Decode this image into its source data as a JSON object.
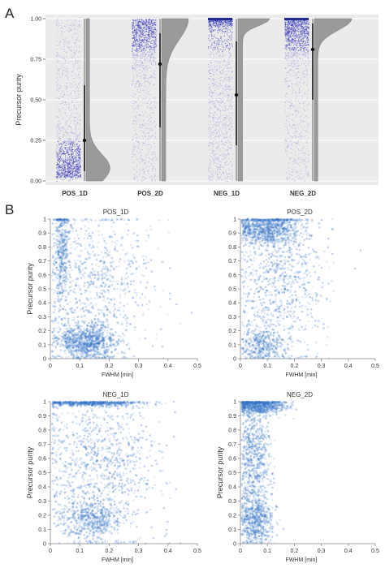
{
  "panels": {
    "a": "A",
    "b": "B"
  },
  "chart_data": [
    {
      "type": "raincloud",
      "panel": "A",
      "ylabel": "Precursor purity",
      "ylim": [
        0,
        1
      ],
      "yticks": [
        "0.00",
        "0.25",
        "0.50",
        "0.75",
        "1.00"
      ],
      "categories": [
        "POS_1D",
        "POS_2D",
        "NEG_1D",
        "NEG_2D"
      ],
      "medians": [
        0.25,
        0.72,
        0.53,
        0.81
      ],
      "iqr": [
        [
          0.06,
          0.59
        ],
        [
          0.33,
          0.91
        ],
        [
          0.22,
          0.86
        ],
        [
          0.5,
          0.97
        ]
      ],
      "grid": true,
      "point_color": "#2b2bb8",
      "violin_color": "#9a9a9a",
      "background": "#ebebeb"
    },
    {
      "type": "scatter",
      "panel": "B",
      "title": "POS_1D",
      "xlabel": "FWHM [min]",
      "ylabel": "Precursor purity",
      "xlim": [
        0,
        0.5
      ],
      "ylim": [
        0,
        1
      ],
      "xticks": [
        "0",
        "0.1",
        "0.2",
        "0.3",
        "0.4",
        "0.5"
      ],
      "yticks": [
        "0",
        "0.1",
        "0.2",
        "0.3",
        "0.4",
        "0.5",
        "0.6",
        "0.7",
        "0.8",
        "0.9",
        "1"
      ],
      "clusters": [
        {
          "cx": 0.12,
          "cy": 0.12,
          "sx": 0.05,
          "sy": 0.06,
          "weight": 0.42
        },
        {
          "cx": 0.04,
          "cy": 0.8,
          "sx": 0.012,
          "sy": 0.18,
          "weight": 0.18
        },
        {
          "cx": 0.15,
          "cy": 0.5,
          "sx": 0.1,
          "sy": 0.3,
          "weight": 0.4
        }
      ],
      "point_color": "#3a78c8"
    },
    {
      "type": "scatter",
      "panel": "B",
      "title": "POS_2D",
      "xlabel": "FWHM [min]",
      "ylabel": "",
      "xlim": [
        0,
        0.5
      ],
      "ylim": [
        0,
        1
      ],
      "xticks": [
        "0",
        "0.1",
        "0.2",
        "0.3",
        "0.4",
        "0.5"
      ],
      "yticks": [
        "0",
        "0.1",
        "0.2",
        "0.3",
        "0.4",
        "0.5",
        "0.6",
        "0.7",
        "0.8",
        "0.9",
        "1"
      ],
      "clusters": [
        {
          "cx": 0.1,
          "cy": 0.93,
          "sx": 0.06,
          "sy": 0.06,
          "weight": 0.4
        },
        {
          "cx": 0.08,
          "cy": 0.1,
          "sx": 0.04,
          "sy": 0.06,
          "weight": 0.15
        },
        {
          "cx": 0.14,
          "cy": 0.55,
          "sx": 0.08,
          "sy": 0.28,
          "weight": 0.45
        }
      ],
      "point_color": "#3a78c8"
    },
    {
      "type": "scatter",
      "panel": "B",
      "title": "NEG_1D",
      "xlabel": "FWHM [min]",
      "ylabel": "Precursor purity",
      "xlim": [
        0,
        0.5
      ],
      "ylim": [
        0,
        1
      ],
      "xticks": [
        "0",
        "0.1",
        "0.2",
        "0.3",
        "0.4",
        "0.5"
      ],
      "yticks": [
        "0",
        "0.1",
        "0.2",
        "0.3",
        "0.4",
        "0.5",
        "0.6",
        "0.7",
        "0.8",
        "0.9",
        "1"
      ],
      "clusters": [
        {
          "cx": 0.14,
          "cy": 0.99,
          "sx": 0.08,
          "sy": 0.01,
          "weight": 0.25
        },
        {
          "cx": 0.14,
          "cy": 0.17,
          "sx": 0.05,
          "sy": 0.06,
          "weight": 0.22
        },
        {
          "cx": 0.17,
          "cy": 0.55,
          "sx": 0.1,
          "sy": 0.28,
          "weight": 0.53
        }
      ],
      "point_color": "#3a78c8"
    },
    {
      "type": "scatter",
      "panel": "B",
      "title": "NEG_2D",
      "xlabel": "FWHM [min]",
      "ylabel": "Precursor purity",
      "xlim": [
        0,
        0.5
      ],
      "ylim": [
        0,
        1
      ],
      "xticks": [
        "0",
        "0.1",
        "0.2",
        "0.3",
        "0.4",
        "0.5"
      ],
      "yticks": [
        "0",
        "0.1",
        "0.2",
        "0.3",
        "0.4",
        "0.5",
        "0.6",
        "0.7",
        "0.8",
        "0.9",
        "1"
      ],
      "clusters": [
        {
          "cx": 0.07,
          "cy": 0.97,
          "sx": 0.05,
          "sy": 0.03,
          "weight": 0.35
        },
        {
          "cx": 0.05,
          "cy": 0.6,
          "sx": 0.03,
          "sy": 0.25,
          "weight": 0.4
        },
        {
          "cx": 0.06,
          "cy": 0.15,
          "sx": 0.03,
          "sy": 0.08,
          "weight": 0.25
        }
      ],
      "point_color": "#3a78c8"
    }
  ]
}
